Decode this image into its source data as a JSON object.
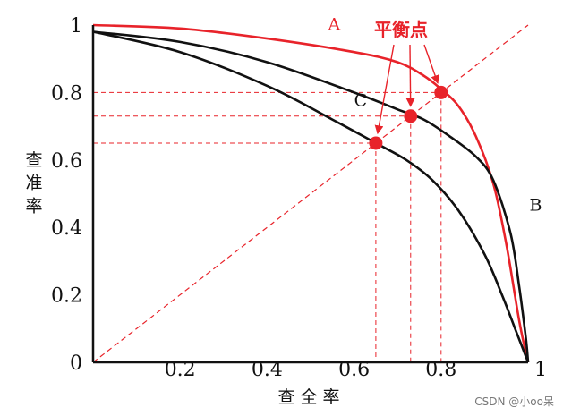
{
  "colors": {
    "red": "#e8232a",
    "black": "#111111"
  },
  "watermark": "CSDN @小oo呆",
  "chart_data": {
    "type": "line",
    "title": "",
    "xlabel": "查全率",
    "ylabel": "查准率",
    "xlim": [
      0,
      1
    ],
    "ylim": [
      0,
      1
    ],
    "grid": false,
    "x_ticks": [
      {
        "value": 0.2,
        "label": "0.2"
      },
      {
        "value": 0.4,
        "label": "0.4"
      },
      {
        "value": 0.6,
        "label": "0.6"
      },
      {
        "value": 0.8,
        "label": "0.8"
      },
      {
        "value": 1,
        "label": "1"
      }
    ],
    "y_ticks": [
      {
        "value": 0,
        "label": "0"
      },
      {
        "value": 0.2,
        "label": "0.2"
      },
      {
        "value": 0.4,
        "label": "0.4"
      },
      {
        "value": 0.6,
        "label": "0.6"
      },
      {
        "value": 0.8,
        "label": "0.8"
      },
      {
        "value": 1,
        "label": "1"
      }
    ],
    "series": [
      {
        "name": "A",
        "color": "#e8232a",
        "x": [
          0,
          0.2,
          0.4,
          0.6,
          0.7,
          0.76,
          0.8,
          0.84,
          0.88,
          0.92,
          0.95,
          0.98,
          1.0
        ],
        "y": [
          1.0,
          0.99,
          0.96,
          0.92,
          0.89,
          0.85,
          0.81,
          0.76,
          0.67,
          0.53,
          0.35,
          0.12,
          0.0
        ],
        "label_at": [
          0.54,
          0.985
        ]
      },
      {
        "name": "B",
        "color": "#111111",
        "x": [
          0,
          0.2,
          0.4,
          0.6,
          0.7,
          0.76,
          0.82,
          0.88,
          0.92,
          0.96,
          0.98,
          0.995,
          1.0
        ],
        "y": [
          0.98,
          0.95,
          0.89,
          0.8,
          0.75,
          0.72,
          0.67,
          0.61,
          0.54,
          0.38,
          0.22,
          0.07,
          0.0
        ],
        "label_at": [
          1.003,
          0.45
        ]
      },
      {
        "name": "C",
        "color": "#111111",
        "x": [
          0,
          0.2,
          0.4,
          0.55,
          0.65,
          0.72,
          0.78,
          0.84,
          0.9,
          0.94,
          0.97,
          1.0
        ],
        "y": [
          0.98,
          0.92,
          0.82,
          0.72,
          0.65,
          0.6,
          0.54,
          0.45,
          0.32,
          0.2,
          0.1,
          0.0
        ],
        "label_at": [
          0.6,
          0.76
        ]
      }
    ],
    "reference_line": {
      "x": [
        0,
        1
      ],
      "y": [
        0,
        1
      ],
      "style": "dashed",
      "color": "#e8232a"
    },
    "break_even_points": [
      {
        "series": "C",
        "x": 0.65,
        "y": 0.65
      },
      {
        "series": "B",
        "x": 0.73,
        "y": 0.73
      },
      {
        "series": "A",
        "x": 0.8,
        "y": 0.8
      }
    ],
    "annotation": {
      "text": "平衡点",
      "color": "#e8232a"
    }
  }
}
